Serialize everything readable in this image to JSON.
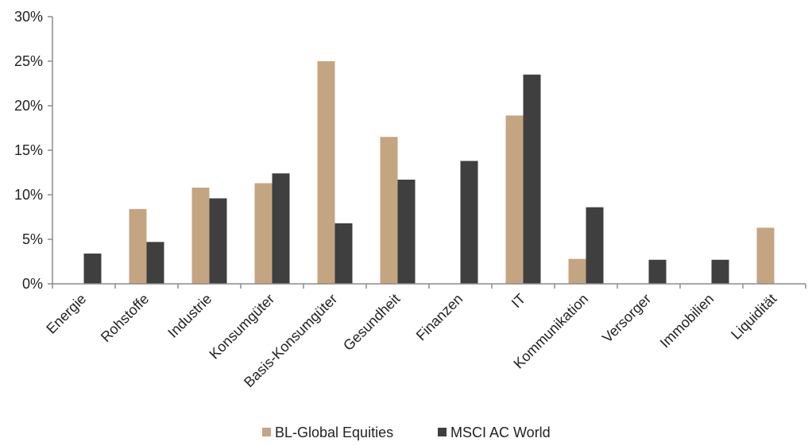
{
  "chart_data": {
    "type": "bar",
    "categories": [
      "Energie",
      "Rohstoffe",
      "Industrie",
      "Konsumgüter",
      "Basis-Konsumgüter",
      "Gesundheit",
      "Finanzen",
      "IT",
      "Kommunikation",
      "Versorger",
      "Immobilien",
      "Liquidität"
    ],
    "series": [
      {
        "name": "BL-Global Equities",
        "color": "#c4a582",
        "values": [
          0,
          8.4,
          10.8,
          11.3,
          25.0,
          16.5,
          0,
          18.9,
          2.8,
          0,
          0,
          6.3
        ]
      },
      {
        "name": "MSCI AC World",
        "color": "#3f3f3f",
        "values": [
          3.4,
          4.7,
          9.6,
          12.4,
          6.8,
          11.7,
          13.8,
          23.5,
          8.6,
          2.7,
          2.7,
          0
        ]
      }
    ],
    "yticks": [
      "0%",
      "5%",
      "10%",
      "15%",
      "20%",
      "25%",
      "30%"
    ],
    "ylim": [
      0,
      30
    ],
    "grid": false,
    "legend_position": "bottom"
  }
}
